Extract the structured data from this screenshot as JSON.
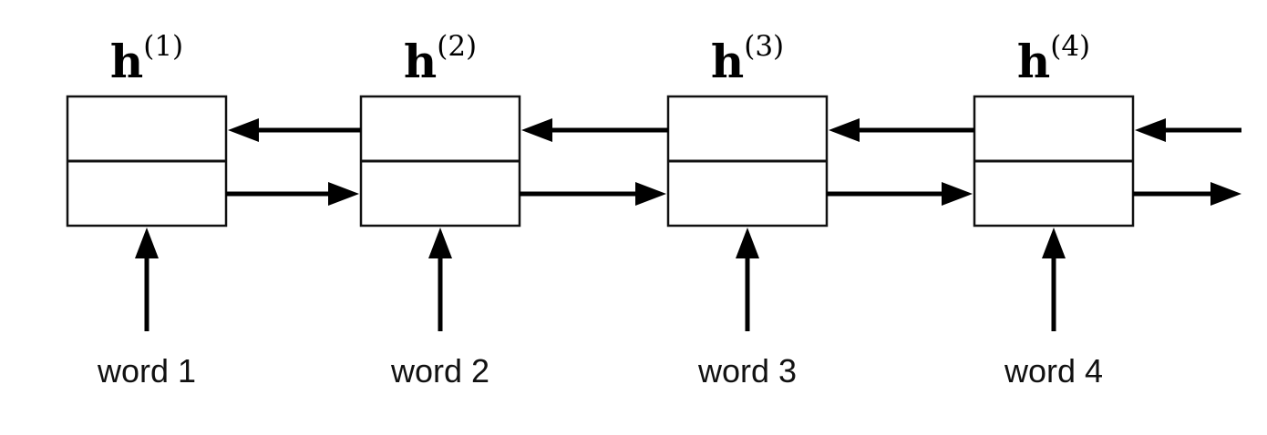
{
  "cells": [
    {
      "symbol": "h",
      "superscript": "(1)",
      "word": "word 1"
    },
    {
      "symbol": "h",
      "superscript": "(2)",
      "word": "word 2"
    },
    {
      "symbol": "h",
      "superscript": "(3)",
      "word": "word 3"
    },
    {
      "symbol": "h",
      "superscript": "(4)",
      "word": "word 4"
    }
  ],
  "colors": {
    "stroke": "#000000",
    "background": "#ffffff"
  }
}
